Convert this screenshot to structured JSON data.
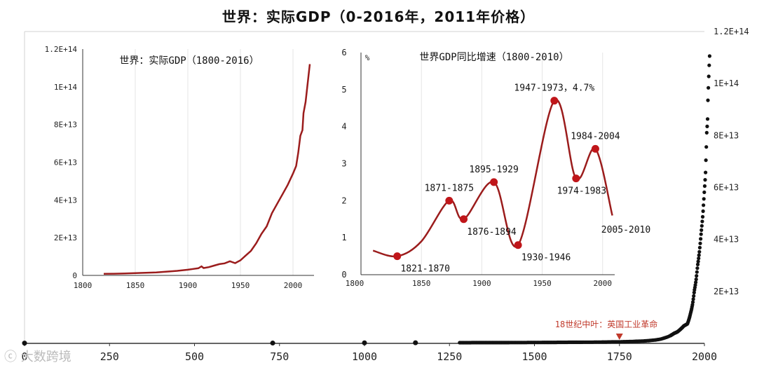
{
  "title": "世界：实际GDP（0-2016年，2011年价格）",
  "watermark": "大数跨境",
  "chart_data": [
    {
      "id": "main",
      "type": "scatter",
      "title": "世界：实际GDP（0-2016年，2011年价格）",
      "xlim": [
        0,
        2000
      ],
      "ylim": [
        0,
        120000000000000.0
      ],
      "x_ticks": [
        0,
        250,
        500,
        750,
        1000,
        1250,
        1500,
        1750,
        2000
      ],
      "x_tick_labels": [
        "0",
        "250",
        "500",
        "750",
        "1000",
        "1250",
        "1500",
        "1750",
        "2000"
      ],
      "y_ticks": [
        20000000000000.0,
        40000000000000.0,
        60000000000000.0,
        80000000000000.0,
        100000000000000.0,
        120000000000000.0
      ],
      "y_tick_labels": [
        "2E+13",
        "4E+13",
        "6E+13",
        "8E+13",
        "1E+14",
        "1.2E+14"
      ],
      "y_axis_side": "right",
      "annotation": {
        "text": "18世纪中叶：英国工业革命",
        "x": 1750,
        "color": "#c0392b"
      },
      "x": [
        0,
        730,
        1000,
        1150,
        1280,
        1300,
        1350,
        1400,
        1450,
        1500,
        1550,
        1600,
        1650,
        1700,
        1750,
        1780,
        1800,
        1820,
        1840,
        1860,
        1870,
        1880,
        1890,
        1900,
        1910,
        1913,
        1920,
        1930,
        1940,
        1950,
        1955,
        1960,
        1965,
        1970,
        1975,
        1980,
        1985,
        1990,
        1995,
        2000,
        2003,
        2005,
        2007,
        2009,
        2010,
        2012,
        2014,
        2016
      ],
      "values": [
        100000000000.0,
        120000000000.0,
        200000000000.0,
        230000000000.0,
        260000000000.0,
        280000000000.0,
        290000000000.0,
        300000000000.0,
        320000000000.0,
        350000000000.0,
        380000000000.0,
        420000000000.0,
        450000000000.0,
        500000000000.0,
        600000000000.0,
        700000000000.0,
        800000000000.0,
        900000000000.0,
        1100000000000.0,
        1400000000000.0,
        1600000000000.0,
        2000000000000.0,
        2400000000000.0,
        3000000000000.0,
        3800000000000.0,
        4000000000000.0,
        4400000000000.0,
        5500000000000.0,
        6800000000000.0,
        7500000000000.0,
        9500000000000.0,
        12000000000000.0,
        15000000000000.0,
        20000000000000.0,
        24000000000000.0,
        30000000000000.0,
        35000000000000.0,
        42000000000000.0,
        49000000000000.0,
        59000000000000.0,
        65000000000000.0,
        73000000000000.0,
        82000000000000.0,
        85000000000000.0,
        92000000000000.0,
        100000000000000.0,
        107000000000000.0,
        113000000000000.0
      ]
    },
    {
      "id": "inset1",
      "type": "line",
      "title": "世界：实际GDP（1800-2016）",
      "xlim": [
        1800,
        2020
      ],
      "ylim": [
        0,
        120000000000000.0
      ],
      "x_ticks": [
        1800,
        1850,
        1900,
        1950,
        2000
      ],
      "x_tick_labels": [
        "1800",
        "1850",
        "1900",
        "1950",
        "2000"
      ],
      "y_ticks": [
        0,
        20000000000000.0,
        40000000000000.0,
        60000000000000.0,
        80000000000000.0,
        100000000000000.0,
        120000000000000.0
      ],
      "y_tick_labels": [
        "0",
        "2E+13",
        "4E+13",
        "6E+13",
        "8E+13",
        "1E+14",
        "1.2E+14"
      ],
      "x": [
        1820,
        1830,
        1840,
        1850,
        1860,
        1870,
        1880,
        1890,
        1900,
        1905,
        1910,
        1913,
        1915,
        1920,
        1925,
        1930,
        1935,
        1940,
        1945,
        1950,
        1955,
        1960,
        1965,
        1970,
        1975,
        1980,
        1985,
        1990,
        1995,
        2000,
        2003,
        2005,
        2007,
        2009,
        2010,
        2012,
        2014,
        2016
      ],
      "values": [
        800000000000.0,
        900000000000.0,
        1000000000000.0,
        1200000000000.0,
        1400000000000.0,
        1600000000000.0,
        2000000000000.0,
        2400000000000.0,
        3000000000000.0,
        3400000000000.0,
        3800000000000.0,
        4800000000000.0,
        3900000000000.0,
        4400000000000.0,
        5200000000000.0,
        6000000000000.0,
        6400000000000.0,
        7500000000000.0,
        6500000000000.0,
        8000000000000.0,
        10500000000000.0,
        13000000000000.0,
        17000000000000.0,
        22000000000000.0,
        26000000000000.0,
        33000000000000.0,
        38000000000000.0,
        43000000000000.0,
        48000000000000.0,
        54000000000000.0,
        58000000000000.0,
        65000000000000.0,
        74000000000000.0,
        77000000000000.0,
        86000000000000.0,
        92000000000000.0,
        102000000000000.0,
        112000000000000.0
      ]
    },
    {
      "id": "inset2",
      "type": "line",
      "title": "世界GDP同比增速（1800-2010）",
      "ylabel": "%",
      "xlim": [
        1800,
        2010
      ],
      "ylim": [
        0,
        6
      ],
      "x_ticks": [
        1850,
        1900,
        1950,
        2000
      ],
      "x_tick_labels": [
        "1850",
        "1900",
        "1950",
        "2000"
      ],
      "extra_x_label": "1800",
      "y_ticks": [
        0,
        1,
        2,
        3,
        4,
        5,
        6
      ],
      "y_tick_labels": [
        "0",
        "1",
        "2",
        "3",
        "4",
        "5",
        "6"
      ],
      "curve": [
        [
          1810,
          0.65
        ],
        [
          1830,
          0.5
        ],
        [
          1850,
          0.9
        ],
        [
          1873,
          2.0
        ],
        [
          1885,
          1.5
        ],
        [
          1910,
          2.5
        ],
        [
          1930,
          0.8
        ],
        [
          1960,
          4.7
        ],
        [
          1978,
          2.6
        ],
        [
          1994,
          3.4
        ],
        [
          2008,
          1.6
        ]
      ],
      "points": [
        {
          "x": 1830,
          "y": 0.5,
          "label": "1821-1870",
          "pos": "below-right"
        },
        {
          "x": 1873,
          "y": 2.0,
          "label": "1871-1875",
          "pos": "above"
        },
        {
          "x": 1885,
          "y": 1.5,
          "label": "1876-1894",
          "pos": "below-right"
        },
        {
          "x": 1910,
          "y": 2.5,
          "label": "1895-1929",
          "pos": "above"
        },
        {
          "x": 1930,
          "y": 0.8,
          "label": "1930-1946",
          "pos": "below-right"
        },
        {
          "x": 1960,
          "y": 4.7,
          "label": "1947-1973，4.7%",
          "pos": "above"
        },
        {
          "x": 1978,
          "y": 2.6,
          "label": "1974-1983",
          "pos": "below"
        },
        {
          "x": 1994,
          "y": 3.4,
          "label": "1984-2004",
          "pos": "above"
        }
      ],
      "end_label": "2005-2010"
    }
  ],
  "colors": {
    "line": "#9b1c1c",
    "marker": "#c0161a",
    "scatter": "#111111",
    "axis": "#333333",
    "grid": "#e5e5e5",
    "annotation": "#c0392b"
  }
}
